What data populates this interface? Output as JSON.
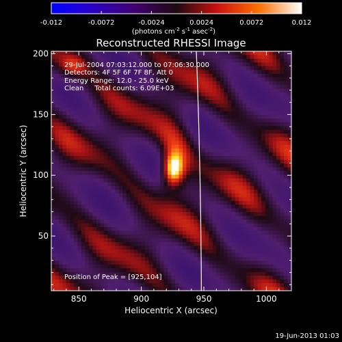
{
  "colorbar": {
    "ticks": [
      "-0.012",
      "-0.0072",
      "-0.0024",
      "0.0024",
      "0.0072",
      "0.012"
    ],
    "range": [
      -0.012,
      0.012
    ],
    "units_main": "(photons cm",
    "units_exp1": "-2",
    "units_mid": " s",
    "units_exp2": "-1",
    "units_tail": " asec",
    "units_exp3": "-2",
    "units_close": ")"
  },
  "chart_data": {
    "type": "heatmap",
    "title": "Reconstructed RHESSI Image",
    "xlabel": "Heliocentric X (arcsec)",
    "ylabel": "Heliocentric Y (arcsec)",
    "xlim": [
      828,
      1020
    ],
    "ylim": [
      5,
      202
    ],
    "xticks": [
      850,
      900,
      950,
      1000
    ],
    "yticks": [
      50,
      100,
      150,
      200
    ],
    "peak": {
      "x": 925,
      "y": 104
    },
    "limb": [
      [
        944,
        202
      ],
      [
        948,
        5
      ]
    ],
    "annotations": [
      "29-Jul-2004 07:03:12.000 to 07:06:30.000",
      "Detectors: 4F 5F 6F 7F 8F, Att 0",
      "Energy Range: 12.0 - 25.0 keV",
      "Clean     Total counts: 6.09E+03"
    ],
    "peak_label": "Position of Peak = [925,104]"
  },
  "footer": {
    "timestamp": "19-Jun-2013 01:03"
  }
}
